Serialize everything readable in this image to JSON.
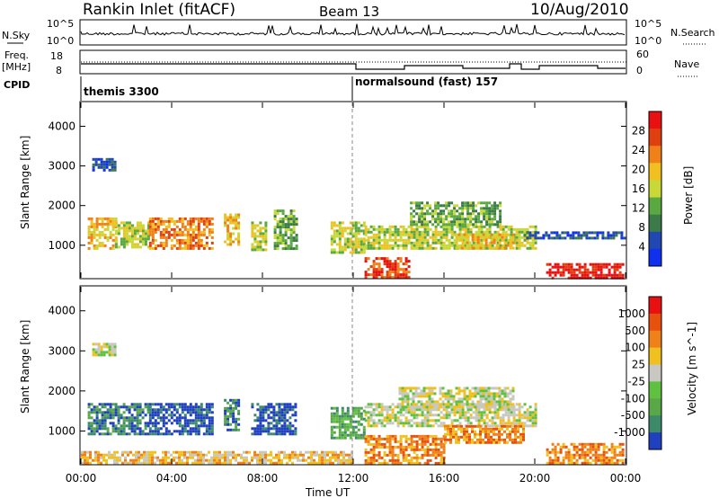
{
  "header": {
    "station": "Rankin Inlet (fitACF)",
    "beam": "Beam 13",
    "date": "10/Aug/2010"
  },
  "nsky_panel": {
    "left_label": "N.Sky",
    "right_label": "N.Search",
    "left_ticks": [
      "10^5",
      "10^0"
    ],
    "right_ticks": [
      "10^5",
      "10^0"
    ]
  },
  "freq_panel": {
    "left_label": "Freq.",
    "left_unit": "[MHz]",
    "right_label": "Nave",
    "left_ticks": [
      "18",
      "8"
    ],
    "right_ticks": [
      "60",
      "0"
    ]
  },
  "cpid_panel": {
    "label": "CPID",
    "modes": [
      {
        "name": "themis 3300",
        "start_hour": 0
      },
      {
        "name": "normalsound (fast) 157",
        "start_hour": 12
      }
    ]
  },
  "x_axis": {
    "label": "Time UT",
    "ticks": [
      "00:00",
      "04:00",
      "08:00",
      "12:00",
      "16:00",
      "20:00",
      "00:00"
    ]
  },
  "chart_data": [
    {
      "type": "heatmap",
      "title": "",
      "xlabel": "Time UT",
      "ylabel": "Slant Range [km]",
      "xlim_hours": [
        0,
        24
      ],
      "ylim_km": [
        180,
        4600
      ],
      "y_ticks": [
        "4000",
        "3000",
        "2000",
        "1000"
      ],
      "colorbar_label": "Power [dB]",
      "colorbar_ticks": [
        "28",
        "24",
        "20",
        "16",
        "12",
        "8",
        "4"
      ],
      "colors": [
        "#1030f0",
        "#2048b0",
        "#3c7a4a",
        "#5aa840",
        "#c8d838",
        "#f0c020",
        "#f08018",
        "#e04010",
        "#e81010"
      ],
      "regions": [
        {
          "t0": 0.3,
          "t1": 1.5,
          "r0": 900,
          "r1": 1700,
          "level": 5
        },
        {
          "t0": 1.5,
          "t1": 3.0,
          "r0": 950,
          "r1": 1600,
          "level": 4
        },
        {
          "t0": 3.0,
          "t1": 5.8,
          "r0": 900,
          "r1": 1700,
          "level": 6
        },
        {
          "t0": 6.3,
          "t1": 6.9,
          "r0": 1000,
          "r1": 1800,
          "level": 5
        },
        {
          "t0": 7.5,
          "t1": 8.1,
          "r0": 900,
          "r1": 1600,
          "level": 4
        },
        {
          "t0": 8.5,
          "t1": 9.5,
          "r0": 900,
          "r1": 1900,
          "level": 3
        },
        {
          "t0": 11.0,
          "t1": 12.5,
          "r0": 800,
          "r1": 1600,
          "level": 4
        },
        {
          "t0": 12.5,
          "t1": 20.0,
          "r0": 900,
          "r1": 1500,
          "level": 4
        },
        {
          "t0": 14.5,
          "t1": 18.5,
          "r0": 1550,
          "r1": 2100,
          "level": 3
        },
        {
          "t0": 12.5,
          "t1": 14.5,
          "r0": 180,
          "r1": 700,
          "level": 7
        },
        {
          "t0": 16.5,
          "t1": 19.0,
          "r0": 900,
          "r1": 1300,
          "level": 5
        },
        {
          "t0": 20.5,
          "t1": 23.9,
          "r0": 180,
          "r1": 550,
          "level": 8
        },
        {
          "t0": 19.5,
          "t1": 23.9,
          "r0": 1150,
          "r1": 1350,
          "level": 1
        },
        {
          "t0": 0.5,
          "t1": 1.5,
          "r0": 2900,
          "r1": 3200,
          "level": 1
        }
      ]
    },
    {
      "type": "heatmap",
      "title": "",
      "xlabel": "Time UT",
      "ylabel": "Slant Range [km]",
      "xlim_hours": [
        0,
        24
      ],
      "ylim_km": [
        180,
        4600
      ],
      "y_ticks": [
        "4000",
        "3000",
        "2000",
        "1000"
      ],
      "colorbar_label": "Velocity [m s^-1]",
      "colorbar_ticks": [
        "1000",
        "500",
        "100",
        "25",
        "-25",
        "-100",
        "-500",
        "-1000"
      ],
      "colors": [
        "#2040c0",
        "#3c8a6a",
        "#58a848",
        "#60c040",
        "#c8c8c0",
        "#f0c020",
        "#f08018",
        "#e85010",
        "#e81010"
      ],
      "regions": [
        {
          "t0": 0.3,
          "t1": 3.0,
          "r0": 900,
          "r1": 1700,
          "level": 1
        },
        {
          "t0": 3.0,
          "t1": 5.8,
          "r0": 900,
          "r1": 1700,
          "level": 0
        },
        {
          "t0": 6.3,
          "t1": 6.9,
          "r0": 1000,
          "r1": 1800,
          "level": 1
        },
        {
          "t0": 7.5,
          "t1": 9.5,
          "r0": 900,
          "r1": 1700,
          "level": 0
        },
        {
          "t0": 11.0,
          "t1": 12.5,
          "r0": 800,
          "r1": 1600,
          "level": 2
        },
        {
          "t0": 12.5,
          "t1": 20.0,
          "r0": 1150,
          "r1": 1700,
          "level": 4
        },
        {
          "t0": 14.0,
          "t1": 19.0,
          "r0": 1600,
          "r1": 2100,
          "level": 4
        },
        {
          "t0": 12.5,
          "t1": 16.0,
          "r0": 180,
          "r1": 900,
          "level": 6
        },
        {
          "t0": 16.0,
          "t1": 19.5,
          "r0": 700,
          "r1": 1150,
          "level": 6
        },
        {
          "t0": 20.5,
          "t1": 23.9,
          "r0": 180,
          "r1": 700,
          "level": 6
        },
        {
          "t0": 0.0,
          "t1": 12.0,
          "r0": 180,
          "r1": 500,
          "level": 5
        },
        {
          "t0": 0.5,
          "t1": 1.5,
          "r0": 2900,
          "r1": 3200,
          "level": 4
        }
      ]
    }
  ]
}
